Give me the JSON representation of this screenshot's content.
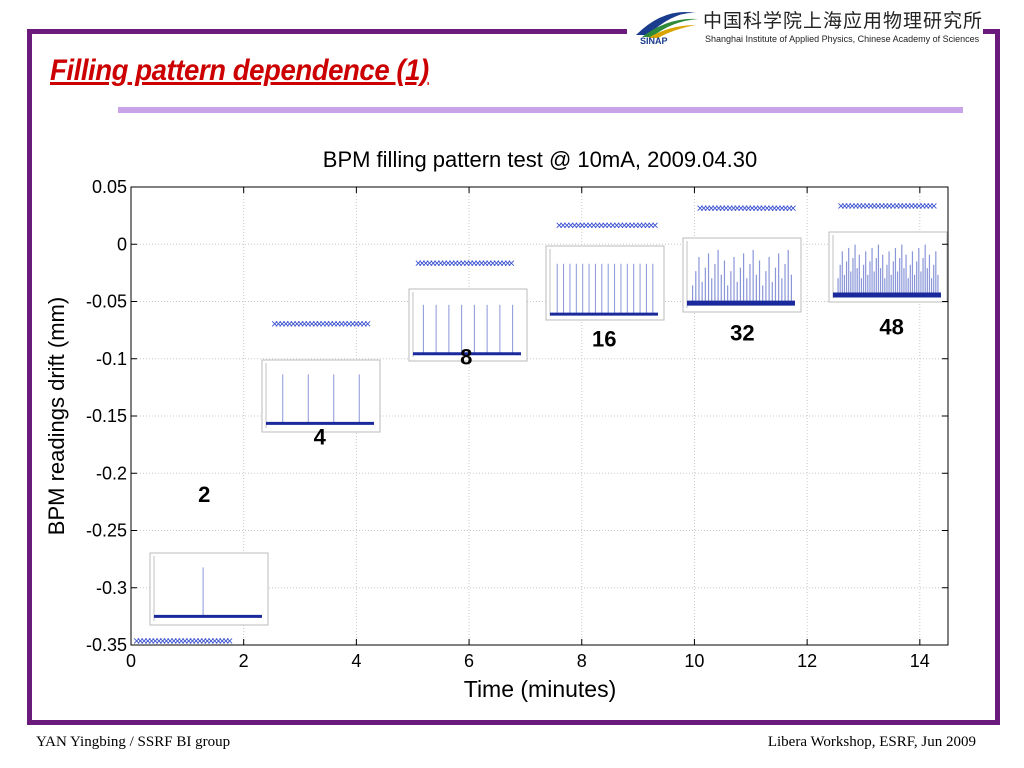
{
  "slide": {
    "title": "Filling pattern dependence (1)",
    "institute_cn": "中国科学院上海应用物理研究所",
    "institute_en": "Shanghai Institute of Applied Physics, Chinese Academy of Sciences",
    "logo_text": "SINAP",
    "footer_left": "YAN Yingbing / SSRF BI group",
    "footer_right": "Libera Workshop, ESRF, Jun 2009",
    "colors": {
      "frame": "#6a1a7a",
      "title": "#cc0000",
      "title_rule": "#c9a3e8",
      "series": "#3a50d0"
    }
  },
  "chart_data": {
    "type": "scatter",
    "title": "BPM filling pattern test @ 10mA, 2009.04.30",
    "xlabel": "Time (minutes)",
    "ylabel": "BPM readings drift (mm)",
    "xlim": [
      0,
      14.5
    ],
    "ylim": [
      -0.35,
      0.05
    ],
    "xticks": [
      "0",
      "2",
      "4",
      "6",
      "8",
      "10",
      "12",
      "14"
    ],
    "yticks": [
      "0.05",
      "0",
      "-0.05",
      "-0.1",
      "-0.15",
      "-0.2",
      "-0.25",
      "-0.3",
      "-0.35"
    ],
    "grid": true,
    "segments": [
      {
        "label": "2",
        "x_start": 0.1,
        "x_end": 1.75,
        "y": -0.3465
      },
      {
        "label": "4",
        "x_start": 2.55,
        "x_end": 4.2,
        "y": -0.0695
      },
      {
        "label": "8",
        "x_start": 5.1,
        "x_end": 6.75,
        "y": -0.0165
      },
      {
        "label": "16",
        "x_start": 7.6,
        "x_end": 9.3,
        "y": 0.0165
      },
      {
        "label": "32",
        "x_start": 10.1,
        "x_end": 11.75,
        "y": 0.0315
      },
      {
        "label": "48",
        "x_start": 12.6,
        "x_end": 14.25,
        "y": 0.0335
      }
    ],
    "annotations": [
      "2",
      "4",
      "8",
      "16",
      "32",
      "48"
    ]
  }
}
